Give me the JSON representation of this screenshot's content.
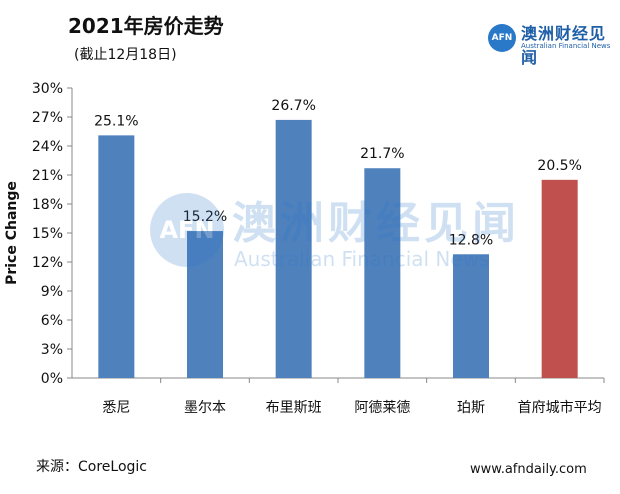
{
  "header": {
    "title": "2021年房价走势",
    "subtitle": "(截止12月18日)"
  },
  "logo": {
    "badge": "AFN",
    "name_cn": "澳洲财经见闻",
    "name_en": "Australian Financial News"
  },
  "watermark": {
    "badge": "AFN",
    "name_cn": "澳洲财经见闻",
    "name_en": "Australian Financial News"
  },
  "footer": {
    "source": "来源：CoreLogic",
    "website": "www.afndaily.com"
  },
  "colors": {
    "bar_primary": "#4f81bd",
    "bar_highlight": "#c0504d",
    "axis": "#888888",
    "brand": "#2a78c8"
  },
  "chart_data": {
    "type": "bar",
    "title": "2021年房价走势",
    "subtitle": "(截止12月18日)",
    "ylabel": "Price Change",
    "xlabel": "",
    "ylim": [
      0,
      30
    ],
    "yticks": [
      "0%",
      "3%",
      "6%",
      "9%",
      "12%",
      "15%",
      "18%",
      "21%",
      "24%",
      "27%",
      "30%"
    ],
    "categories": [
      "悉尼",
      "墨尔本",
      "布里斯班",
      "阿德莱德",
      "珀斯",
      "首府城市平均"
    ],
    "values": [
      25.1,
      15.2,
      26.7,
      21.7,
      12.8,
      20.5
    ],
    "labels": [
      "25.1%",
      "15.2%",
      "26.7%",
      "21.7%",
      "12.8%",
      "20.5%"
    ],
    "highlight_index": 5,
    "grid": false,
    "legend": "none"
  }
}
